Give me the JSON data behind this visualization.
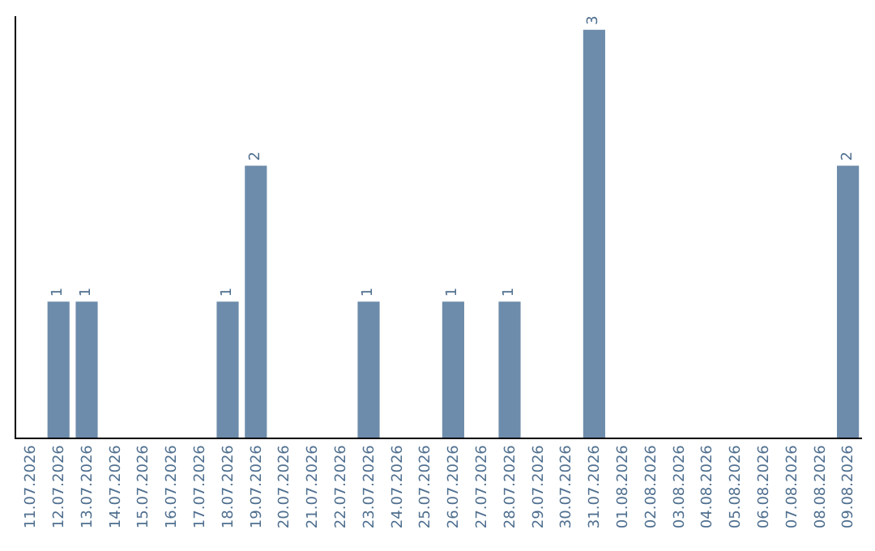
{
  "chart_data": {
    "type": "bar",
    "categories": [
      "11.07.2026",
      "12.07.2026",
      "13.07.2026",
      "14.07.2026",
      "15.07.2026",
      "16.07.2026",
      "17.07.2026",
      "18.07.2026",
      "19.07.2026",
      "20.07.2026",
      "21.07.2026",
      "22.07.2026",
      "23.07.2026",
      "24.07.2026",
      "25.07.2026",
      "26.07.2026",
      "27.07.2026",
      "28.07.2026",
      "29.07.2026",
      "30.07.2026",
      "31.07.2026",
      "01.08.2026",
      "02.08.2026",
      "03.08.2026",
      "04.08.2026",
      "05.08.2026",
      "06.08.2026",
      "07.08.2026",
      "08.08.2026",
      "09.08.2026"
    ],
    "values": [
      0,
      1,
      1,
      0,
      0,
      0,
      0,
      1,
      2,
      0,
      0,
      0,
      1,
      0,
      0,
      1,
      0,
      1,
      0,
      0,
      3,
      0,
      0,
      0,
      0,
      0,
      0,
      0,
      0,
      2
    ],
    "value_labels": [
      null,
      "1",
      "1",
      null,
      null,
      null,
      null,
      "1",
      "2",
      null,
      null,
      null,
      "1",
      null,
      null,
      "1",
      null,
      "1",
      null,
      null,
      "3",
      null,
      null,
      null,
      null,
      null,
      null,
      null,
      null,
      "2"
    ],
    "color": "#6d8cab",
    "ylim": [
      0,
      3.1
    ],
    "tick_labels": "x"
  }
}
